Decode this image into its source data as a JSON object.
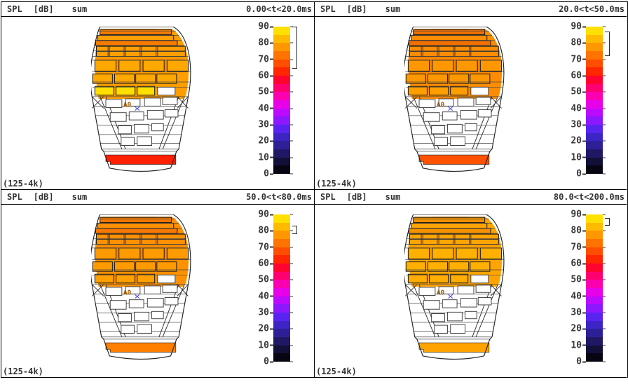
{
  "header": {
    "spl": "SPL",
    "unit": "[dB]",
    "mode": "sum"
  },
  "footer": {
    "band": "(125-4k)"
  },
  "venue": {
    "source_label": "A0",
    "source_label_color": "#9a5a00",
    "source_marker_color": "#4646ff"
  },
  "colorbar": {
    "unit": "dB",
    "min": 0,
    "max": 90,
    "ticks": [
      "90",
      "80",
      "70",
      "60",
      "50",
      "40",
      "30",
      "20",
      "10",
      "0"
    ],
    "steps": [
      "#ffe000",
      "#ffbb00",
      "#ff9700",
      "#ff7300",
      "#ff4e00",
      "#ff2600",
      "#ff0430",
      "#ff0070",
      "#fb00b0",
      "#e800e8",
      "#bc0aff",
      "#8d18ff",
      "#5a24f0",
      "#3d24c4",
      "#2d2096",
      "#201864",
      "#120f38",
      "#070512"
    ]
  },
  "panels": [
    {
      "time_window": "0.00<t<20.0ms",
      "range": {
        "min": 65,
        "max": 90
      },
      "colors": {
        "--wash": "#ff9e00",
        "--wash2": "#f57c00",
        "--blocks": "#ffa800",
        "--hl": "#ffdf00",
        "--stage": "#ff2000"
      }
    },
    {
      "time_window": "20.0<t<50.0ms",
      "range": {
        "min": 73,
        "max": 87
      },
      "colors": {
        "--wash": "#ff8c00",
        "--wash2": "#f07000",
        "--blocks": "#ff9800",
        "--hl": "#ff9e00",
        "--stage": "#ff5200"
      }
    },
    {
      "time_window": "50.0<t<80.0ms",
      "range": {
        "min": 79,
        "max": 83
      },
      "colors": {
        "--wash": "#ff9000",
        "--wash2": "#f57800",
        "--blocks": "#ff9a00",
        "--hl": "#ffa000",
        "--stage": "#ff8000"
      }
    },
    {
      "time_window": "80.0<t<200.0ms",
      "range": {
        "min": 84,
        "max": 88
      },
      "colors": {
        "--wash": "#ffa400",
        "--wash2": "#f59200",
        "--blocks": "#ffb000",
        "--hl": "#ffad00",
        "--stage": "#ffa300"
      }
    }
  ],
  "chart_data": [
    {
      "type": "heatmap",
      "title": "SPL [dB] sum",
      "time_window": "0.00<t<20.0ms",
      "frequency_band": "(125-4k)",
      "colorbar_range": [
        0,
        90
      ],
      "colorbar_ticks": [
        90,
        80,
        70,
        60,
        50,
        40,
        30,
        20,
        10,
        0
      ],
      "observed_range_dB": [
        65,
        90
      ],
      "legend_position": "right",
      "regions": {
        "rear_audience_dB": 79,
        "mid_audience_highlight_dB": 87,
        "stage_front_strip_dB": 66,
        "main_floor_dB": null
      }
    },
    {
      "type": "heatmap",
      "title": "SPL [dB] sum",
      "time_window": "20.0<t<50.0ms",
      "frequency_band": "(125-4k)",
      "colorbar_range": [
        0,
        90
      ],
      "colorbar_ticks": [
        90,
        80,
        70,
        60,
        50,
        40,
        30,
        20,
        10,
        0
      ],
      "observed_range_dB": [
        73,
        87
      ],
      "legend_position": "right",
      "regions": {
        "rear_audience_dB": 78,
        "mid_audience_highlight_dB": 79,
        "stage_front_strip_dB": 72,
        "main_floor_dB": null
      }
    },
    {
      "type": "heatmap",
      "title": "SPL [dB] sum",
      "time_window": "50.0<t<80.0ms",
      "frequency_band": "(125-4k)",
      "colorbar_range": [
        0,
        90
      ],
      "colorbar_ticks": [
        90,
        80,
        70,
        60,
        50,
        40,
        30,
        20,
        10,
        0
      ],
      "observed_range_dB": [
        79,
        83
      ],
      "legend_position": "right",
      "regions": {
        "rear_audience_dB": 80,
        "mid_audience_highlight_dB": 80,
        "stage_front_strip_dB": 78,
        "main_floor_dB": null
      }
    },
    {
      "type": "heatmap",
      "title": "SPL [dB] sum",
      "time_window": "80.0<t<200.0ms",
      "frequency_band": "(125-4k)",
      "colorbar_range": [
        0,
        90
      ],
      "colorbar_ticks": [
        90,
        80,
        70,
        60,
        50,
        40,
        30,
        20,
        10,
        0
      ],
      "observed_range_dB": [
        84,
        88
      ],
      "legend_position": "right",
      "regions": {
        "rear_audience_dB": 84,
        "mid_audience_highlight_dB": 84,
        "stage_front_strip_dB": 83,
        "main_floor_dB": null
      }
    }
  ]
}
